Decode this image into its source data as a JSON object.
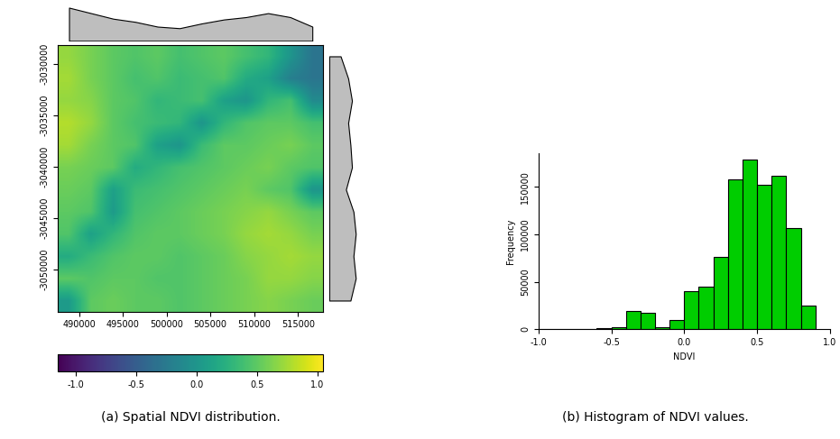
{
  "chart_data": [
    {
      "type": "heatmap",
      "caption": "(a) Spatial NDVI distribution.",
      "xlim": [
        487600,
        517900
      ],
      "ylim": [
        -3054100,
        -3028200
      ],
      "xticks": [
        490000,
        495000,
        500000,
        505000,
        510000,
        515000
      ],
      "yticks": [
        -3050000,
        -3045000,
        -3040000,
        -3035000,
        -3030000
      ],
      "cells": [
        [
          0.7,
          0.6,
          0.5,
          0.45,
          0.5,
          0.4,
          0.45,
          0.5,
          0.4,
          0.3,
          0.0,
          -0.3
        ],
        [
          0.75,
          0.6,
          0.5,
          0.4,
          0.45,
          0.35,
          0.4,
          0.45,
          0.2,
          0.1,
          -0.2,
          -0.3
        ],
        [
          0.7,
          0.65,
          0.5,
          0.45,
          0.3,
          0.35,
          0.4,
          0.1,
          0.0,
          0.3,
          0.4,
          -0.1
        ],
        [
          0.8,
          0.7,
          0.5,
          0.4,
          0.35,
          0.3,
          0.0,
          0.3,
          0.45,
          0.5,
          0.5,
          0.4
        ],
        [
          0.75,
          0.6,
          0.5,
          0.45,
          0.1,
          0.0,
          0.35,
          0.5,
          0.5,
          0.55,
          0.6,
          0.5
        ],
        [
          0.6,
          0.55,
          0.5,
          0.2,
          0.3,
          0.4,
          0.45,
          0.5,
          0.55,
          0.6,
          0.5,
          0.45
        ],
        [
          0.55,
          0.5,
          0.1,
          0.35,
          0.4,
          0.45,
          0.5,
          0.55,
          0.6,
          0.5,
          0.45,
          0.0
        ],
        [
          0.5,
          0.45,
          0.05,
          0.4,
          0.45,
          0.5,
          0.55,
          0.6,
          0.65,
          0.7,
          0.6,
          0.5
        ],
        [
          0.45,
          0.1,
          0.3,
          0.45,
          0.5,
          0.5,
          0.55,
          0.6,
          0.7,
          0.75,
          0.7,
          0.6
        ],
        [
          0.2,
          0.35,
          0.45,
          0.5,
          0.5,
          0.45,
          0.5,
          0.55,
          0.65,
          0.7,
          0.75,
          0.7
        ],
        [
          0.5,
          0.45,
          0.5,
          0.5,
          0.45,
          0.45,
          0.5,
          0.55,
          0.6,
          0.7,
          0.7,
          0.65
        ],
        [
          0.05,
          0.5,
          0.55,
          0.5,
          0.5,
          0.45,
          0.5,
          0.55,
          0.6,
          0.65,
          0.6,
          0.55
        ]
      ],
      "colorbar": {
        "range": [
          -1.15,
          1.05
        ],
        "ticks": [
          -1.0,
          -0.5,
          0.0,
          0.5,
          1.0
        ]
      },
      "top_profile": [
        0.62,
        0.55,
        0.48,
        0.44,
        0.38,
        0.36,
        0.42,
        0.47,
        0.5,
        0.55,
        0.5,
        0.38
      ],
      "right_profile": [
        0.35,
        0.45,
        0.5,
        0.45,
        0.48,
        0.5,
        0.42,
        0.52,
        0.55,
        0.52,
        0.55,
        0.48
      ],
      "profile_range": [
        0.2,
        0.7
      ]
    },
    {
      "type": "histogram",
      "caption": "(b) Histogram of NDVI values.",
      "x_label": "NDVI",
      "y_label": "Frequency",
      "color": "#00cd00",
      "bins": [
        -1.0,
        -0.9,
        -0.8,
        -0.7,
        -0.6,
        -0.5,
        -0.4,
        -0.3,
        -0.2,
        -0.1,
        0.0,
        0.1,
        0.2,
        0.3,
        0.4,
        0.5,
        0.6,
        0.7,
        0.8,
        0.9
      ],
      "counts": [
        200,
        300,
        400,
        500,
        800,
        2000,
        19000,
        17000,
        2500,
        9500,
        40000,
        45000,
        76000,
        158000,
        179000,
        152000,
        162000,
        107000,
        25000
      ],
      "xlim": [
        -1.0,
        1.0
      ],
      "ylim": [
        0,
        185000
      ],
      "xticks": [
        -1.0,
        -0.5,
        0.0,
        0.5,
        1.0
      ],
      "yticks": [
        0,
        50000,
        100000,
        150000
      ]
    }
  ]
}
